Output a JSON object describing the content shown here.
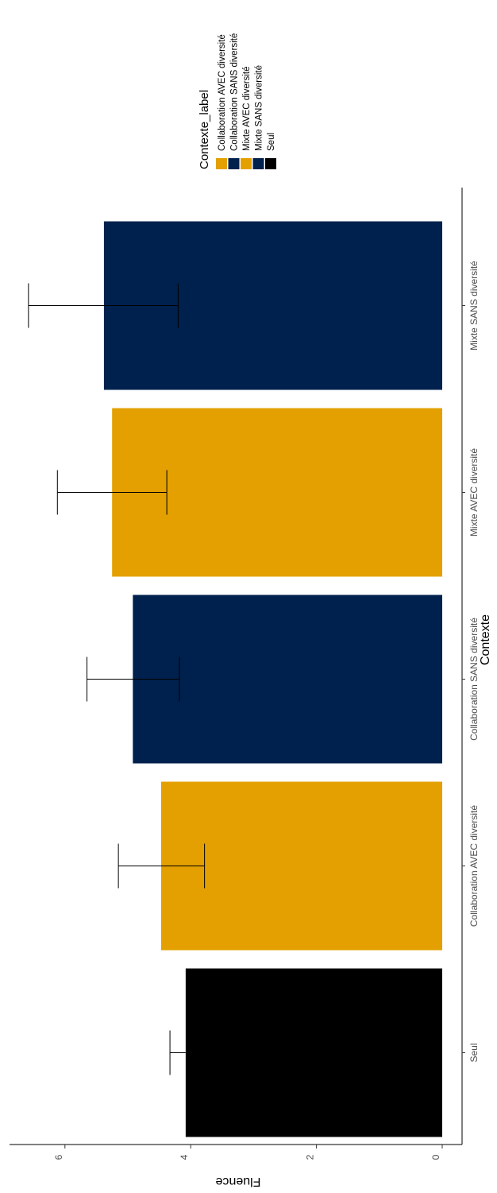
{
  "chart_data": {
    "type": "bar",
    "orientation": "rotated",
    "xlabel": "Contexte",
    "ylabel": "Fluence",
    "categories": [
      "Seul",
      "Collaboration AVEC diversité",
      "Collaboration SANS diversité",
      "Mixte AVEC diversité",
      "Mixte SANS diversité"
    ],
    "values": [
      4.08,
      4.47,
      4.92,
      5.25,
      5.38
    ],
    "error_low": [
      null,
      3.78,
      4.18,
      4.38,
      4.2
    ],
    "error_high": [
      4.33,
      5.15,
      5.65,
      6.12,
      6.58
    ],
    "colors": [
      "#000000",
      "#E3A000",
      "#00214D",
      "#E3A000",
      "#00214D"
    ],
    "ylim": [
      0,
      7.0
    ],
    "yticks": [
      0,
      2,
      4,
      6
    ],
    "ytick_labels": [
      "0",
      "2",
      "4",
      "6"
    ],
    "grid": false,
    "legend": {
      "title": "Contexte_label",
      "position": "top-right",
      "entries": [
        {
          "label": "Collaboration AVEC diversité",
          "color": "#E3A000"
        },
        {
          "label": "Collaboration SANS diversité",
          "color": "#00214D"
        },
        {
          "label": "Mixte AVEC diversité",
          "color": "#E3A000"
        },
        {
          "label": "Mixte SANS diversité",
          "color": "#00214D"
        },
        {
          "label": "Seul",
          "color": "#000000"
        }
      ]
    }
  }
}
